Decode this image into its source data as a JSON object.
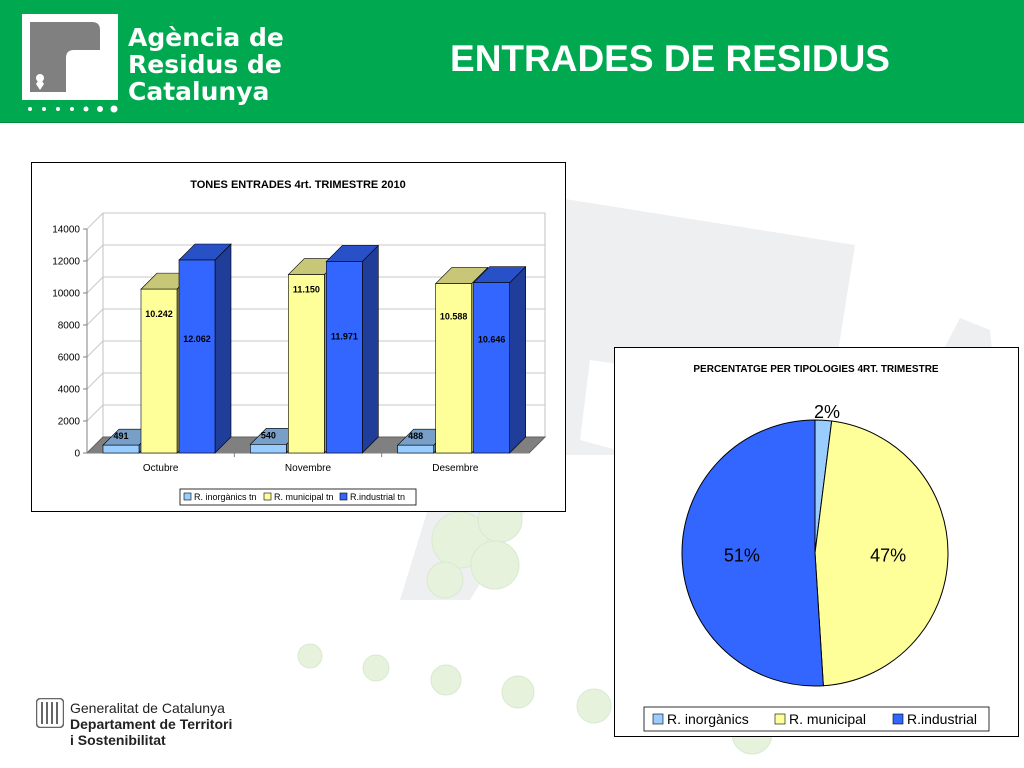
{
  "header": {
    "agency_line1": "Agència de",
    "agency_line2": "Residus de",
    "agency_line3": "Catalunya",
    "page_title": "ENTRADES DE RESIDUS",
    "header_color": "#00a94f"
  },
  "footer": {
    "line1": "Generalitat de Catalunya",
    "line2": "Departament de Territori",
    "line3": "i Sostenibilitat"
  },
  "chart_data": [
    {
      "type": "bar",
      "title": "TONES ENTRADES 4rt. TRIMESTRE 2010",
      "categories": [
        "Octubre",
        "Novembre",
        "Desembre"
      ],
      "series": [
        {
          "name": "R. inorgànics tn",
          "values": [
            491,
            540,
            488
          ],
          "labels": [
            "491",
            "540",
            "488"
          ],
          "color": "#99ccff"
        },
        {
          "name": "R. municipal tn",
          "values": [
            10242,
            11150,
            10588
          ],
          "labels": [
            "10.242",
            "11.150",
            "10.588"
          ],
          "color": "#ffff99"
        },
        {
          "name": "R.industrial tn",
          "values": [
            12062,
            11971,
            10646
          ],
          "labels": [
            "12.062",
            "11.971",
            "10.646"
          ],
          "color": "#3366ff"
        }
      ],
      "yticks": [
        "0",
        "2000",
        "4000",
        "6000",
        "8000",
        "10000",
        "12000",
        "14000"
      ],
      "ylim": [
        0,
        14000
      ],
      "grid": true,
      "legend": "bottom",
      "style": "3d"
    },
    {
      "type": "pie",
      "title": "PERCENTATGE PER TIPOLOGIES 4RT. TRIMESTRE",
      "slices": [
        {
          "name": "R. inorgànics",
          "value": 2,
          "label": "2%",
          "color": "#99ccff"
        },
        {
          "name": "R. municipal",
          "value": 47,
          "label": "47%",
          "color": "#ffff99"
        },
        {
          "name": "R.industrial",
          "value": 51,
          "label": "51%",
          "color": "#3366ff"
        }
      ],
      "legend": "bottom"
    }
  ]
}
